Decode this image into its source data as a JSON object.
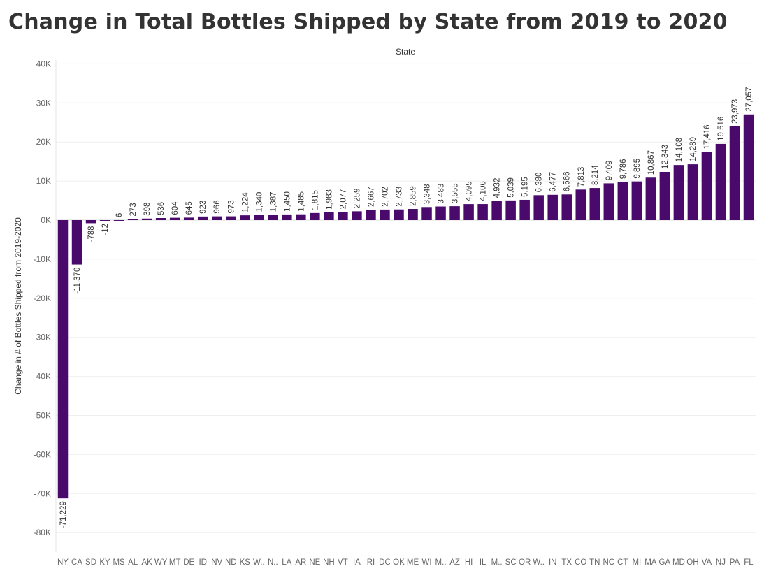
{
  "chart_data": {
    "type": "bar",
    "title": "Change in Total Bottles Shipped by State from 2019 to 2020",
    "xlabel": "State",
    "ylabel": "Change in # of Bottles Shipped from 2019-2020",
    "ylim": [
      -85000,
      40000
    ],
    "yticks": [
      40000,
      30000,
      20000,
      10000,
      0,
      -10000,
      -20000,
      -30000,
      -40000,
      -50000,
      -60000,
      -70000,
      -80000
    ],
    "ytick_labels": [
      "40K",
      "30K",
      "20K",
      "10K",
      "0K",
      "-10K",
      "-20K",
      "-30K",
      "-40K",
      "-50K",
      "-60K",
      "-70K",
      "-80K"
    ],
    "grid": true,
    "bar_color": "#4a0a6b",
    "categories": [
      "NY",
      "CA",
      "SD",
      "KY",
      "MS",
      "AL",
      "AK",
      "WY",
      "MT",
      "DE",
      "ID",
      "NV",
      "ND",
      "KS",
      "W..",
      "N..",
      "LA",
      "AR",
      "NE",
      "NH",
      "VT",
      "IA",
      "RI",
      "DC",
      "OK",
      "ME",
      "WI",
      "M..",
      "AZ",
      "HI",
      "IL",
      "M..",
      "SC",
      "OR",
      "W..",
      "IN",
      "TX",
      "CO",
      "TN",
      "NC",
      "CT",
      "MI",
      "MA",
      "GA",
      "MD",
      "OH",
      "VA",
      "NJ",
      "PA",
      "FL"
    ],
    "values": [
      -71229,
      -11370,
      -788,
      -12,
      6,
      273,
      398,
      536,
      604,
      645,
      923,
      966,
      973,
      1224,
      1340,
      1387,
      1450,
      1485,
      1815,
      1983,
      2077,
      2259,
      2667,
      2702,
      2733,
      2859,
      3348,
      3483,
      3555,
      4095,
      4106,
      4932,
      5039,
      5195,
      6380,
      6477,
      6566,
      7813,
      8214,
      9409,
      9786,
      9895,
      10867,
      12343,
      14108,
      14289,
      17416,
      19516,
      23973,
      27057
    ],
    "value_labels": [
      "-71,229",
      "-11,370",
      "-788",
      "-12",
      "6",
      "273",
      "398",
      "536",
      "604",
      "645",
      "923",
      "966",
      "973",
      "1,224",
      "1,340",
      "1,387",
      "1,450",
      "1,485",
      "1,815",
      "1,983",
      "2,077",
      "2,259",
      "2,667",
      "2,702",
      "2,733",
      "2,859",
      "3,348",
      "3,483",
      "3,555",
      "4,095",
      "4,106",
      "4,932",
      "5,039",
      "5,195",
      "6,380",
      "6,477",
      "6,566",
      "7,813",
      "8,214",
      "9,409",
      "9,786",
      "9,895",
      "10,867",
      "12,343",
      "14,108",
      "14,289",
      "17,416",
      "19,516",
      "23,973",
      "27,057"
    ]
  }
}
